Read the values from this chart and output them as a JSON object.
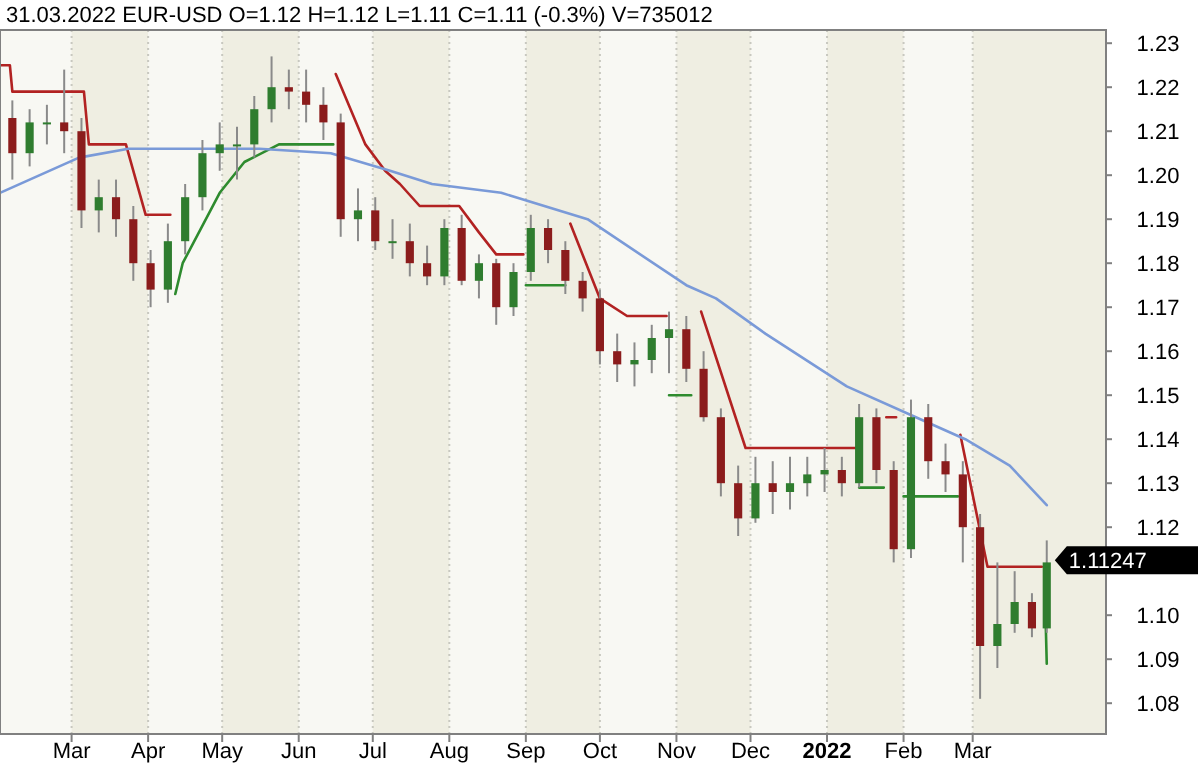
{
  "chart_data": {
    "type": "candlestick",
    "title": "31.03.2022 EUR-USD     O=1.12  H=1.12  L=1.11  C=1.11 (-0.3%)  V=735012",
    "x": [
      "2021-02-05",
      "2021-02-12",
      "2021-02-19",
      "2021-02-26",
      "2021-03-05",
      "2021-03-12",
      "2021-03-19",
      "2021-03-26",
      "2021-04-02",
      "2021-04-09",
      "2021-04-16",
      "2021-04-23",
      "2021-04-30",
      "2021-05-07",
      "2021-05-14",
      "2021-05-21",
      "2021-05-28",
      "2021-06-04",
      "2021-06-11",
      "2021-06-18",
      "2021-06-25",
      "2021-07-02",
      "2021-07-09",
      "2021-07-16",
      "2021-07-23",
      "2021-07-30",
      "2021-08-06",
      "2021-08-13",
      "2021-08-20",
      "2021-08-27",
      "2021-09-03",
      "2021-09-10",
      "2021-09-17",
      "2021-09-24",
      "2021-10-01",
      "2021-10-08",
      "2021-10-15",
      "2021-10-22",
      "2021-10-29",
      "2021-11-05",
      "2021-11-12",
      "2021-11-19",
      "2021-11-26",
      "2021-12-03",
      "2021-12-10",
      "2021-12-17",
      "2021-12-24",
      "2021-12-31",
      "2022-01-07",
      "2022-01-14",
      "2022-01-21",
      "2022-01-28",
      "2022-02-04",
      "2022-02-11",
      "2022-02-18",
      "2022-02-25",
      "2022-03-04",
      "2022-03-11",
      "2022-03-18",
      "2022-03-25",
      "2022-03-31"
    ],
    "ohlc": [
      [
        1.213,
        1.217,
        1.199,
        1.205
      ],
      [
        1.205,
        1.215,
        1.202,
        1.212
      ],
      [
        1.212,
        1.216,
        1.207,
        1.212
      ],
      [
        1.212,
        1.224,
        1.205,
        1.21
      ],
      [
        1.21,
        1.213,
        1.188,
        1.192
      ],
      [
        1.192,
        1.199,
        1.187,
        1.195
      ],
      [
        1.195,
        1.199,
        1.186,
        1.19
      ],
      [
        1.19,
        1.193,
        1.176,
        1.18
      ],
      [
        1.18,
        1.183,
        1.17,
        1.174
      ],
      [
        1.174,
        1.189,
        1.171,
        1.185
      ],
      [
        1.185,
        1.198,
        1.182,
        1.195
      ],
      [
        1.195,
        1.208,
        1.192,
        1.205
      ],
      [
        1.205,
        1.212,
        1.201,
        1.207
      ],
      [
        1.207,
        1.211,
        1.199,
        1.207
      ],
      [
        1.207,
        1.218,
        1.204,
        1.215
      ],
      [
        1.215,
        1.227,
        1.212,
        1.22
      ],
      [
        1.22,
        1.224,
        1.215,
        1.219
      ],
      [
        1.219,
        1.224,
        1.212,
        1.216
      ],
      [
        1.216,
        1.22,
        1.208,
        1.212
      ],
      [
        1.212,
        1.214,
        1.186,
        1.19
      ],
      [
        1.19,
        1.197,
        1.185,
        1.192
      ],
      [
        1.192,
        1.195,
        1.183,
        1.185
      ],
      [
        1.185,
        1.19,
        1.181,
        1.185
      ],
      [
        1.185,
        1.189,
        1.177,
        1.18
      ],
      [
        1.18,
        1.184,
        1.175,
        1.177
      ],
      [
        1.177,
        1.19,
        1.175,
        1.188
      ],
      [
        1.188,
        1.191,
        1.175,
        1.176
      ],
      [
        1.176,
        1.182,
        1.172,
        1.18
      ],
      [
        1.18,
        1.181,
        1.166,
        1.17
      ],
      [
        1.17,
        1.18,
        1.168,
        1.178
      ],
      [
        1.178,
        1.191,
        1.176,
        1.188
      ],
      [
        1.188,
        1.19,
        1.18,
        1.183
      ],
      [
        1.183,
        1.185,
        1.173,
        1.176
      ],
      [
        1.176,
        1.178,
        1.169,
        1.172
      ],
      [
        1.172,
        1.174,
        1.157,
        1.16
      ],
      [
        1.16,
        1.164,
        1.153,
        1.157
      ],
      [
        1.157,
        1.162,
        1.152,
        1.158
      ],
      [
        1.158,
        1.166,
        1.155,
        1.163
      ],
      [
        1.163,
        1.169,
        1.155,
        1.165
      ],
      [
        1.165,
        1.168,
        1.153,
        1.156
      ],
      [
        1.156,
        1.16,
        1.144,
        1.145
      ],
      [
        1.145,
        1.147,
        1.127,
        1.13
      ],
      [
        1.13,
        1.134,
        1.118,
        1.122
      ],
      [
        1.122,
        1.136,
        1.121,
        1.13
      ],
      [
        1.13,
        1.135,
        1.123,
        1.128
      ],
      [
        1.128,
        1.136,
        1.124,
        1.13
      ],
      [
        1.13,
        1.136,
        1.127,
        1.132
      ],
      [
        1.132,
        1.138,
        1.128,
        1.133
      ],
      [
        1.133,
        1.136,
        1.127,
        1.13
      ],
      [
        1.13,
        1.148,
        1.129,
        1.145
      ],
      [
        1.145,
        1.147,
        1.13,
        1.133
      ],
      [
        1.133,
        1.135,
        1.112,
        1.115
      ],
      [
        1.115,
        1.149,
        1.113,
        1.145
      ],
      [
        1.145,
        1.148,
        1.131,
        1.135
      ],
      [
        1.135,
        1.139,
        1.128,
        1.132
      ],
      [
        1.132,
        1.135,
        1.112,
        1.12
      ],
      [
        1.12,
        1.123,
        1.081,
        1.093
      ],
      [
        1.093,
        1.112,
        1.088,
        1.098
      ],
      [
        1.098,
        1.11,
        1.096,
        1.103
      ],
      [
        1.103,
        1.105,
        1.095,
        1.097
      ],
      [
        1.097,
        1.117,
        1.096,
        1.112
      ]
    ],
    "series": [
      {
        "type": "line",
        "color": "#b22222",
        "x": [
          "2021-01-31",
          "2021-02-04",
          "2021-02-05",
          "2021-03-06",
          "2021-03-08",
          "2021-03-23",
          "2021-03-31",
          "2021-04-10",
          "2021-04-11",
          "2021-06-16",
          "2021-06-28",
          "2021-07-06",
          "2021-07-12",
          "2021-07-20",
          "2021-08-05",
          "2021-08-13",
          "2021-08-20",
          "2021-08-31",
          "2021-09-01",
          "2021-09-19",
          "2021-10-01",
          "2021-10-12",
          "2021-10-28",
          "2021-10-29",
          "2021-11-11",
          "2021-11-29",
          "2022-01-13",
          "2022-01-14",
          "2022-01-25",
          "2022-01-29",
          "2022-01-30",
          "2022-02-24",
          "2022-03-07",
          "2022-03-29"
        ],
        "values": [
          1.225,
          1.225,
          1.219,
          1.219,
          1.207,
          1.207,
          1.191,
          1.191,
          null,
          1.223,
          1.207,
          1.201,
          1.198,
          1.193,
          1.193,
          1.187,
          1.182,
          1.182,
          null,
          1.189,
          1.172,
          1.168,
          1.168,
          null,
          1.169,
          1.138,
          1.138,
          null,
          1.145,
          1.145,
          null,
          1.141,
          1.111,
          1.111
        ]
      },
      {
        "type": "line",
        "color": "#2e8b2e",
        "x": [
          "2021-04-12",
          "2021-04-15",
          "2021-04-30",
          "2021-05-10",
          "2021-05-24",
          "2021-06-15",
          "2021-06-16",
          "2021-09-01",
          "2021-09-17",
          "2021-09-18",
          "2021-10-29",
          "2021-11-07",
          "2021-11-08",
          "2022-01-14",
          "2022-01-24",
          "2022-01-25",
          "2022-02-01",
          "2022-02-23",
          "2022-02-24",
          "2022-03-30",
          "2022-03-31"
        ],
        "values": [
          1.173,
          1.18,
          1.196,
          1.203,
          1.207,
          1.207,
          null,
          1.175,
          1.175,
          null,
          1.15,
          1.15,
          null,
          1.129,
          1.129,
          null,
          1.127,
          1.127,
          null,
          1.111,
          1.089
        ]
      },
      {
        "type": "line",
        "color": "#7a9ad8",
        "x": [
          "2021-01-31",
          "2021-03-04",
          "2021-03-24",
          "2021-05-16",
          "2021-06-14",
          "2021-07-08",
          "2021-07-25",
          "2021-08-22",
          "2021-09-26",
          "2021-11-05",
          "2021-11-17",
          "2021-12-07",
          "2022-01-09",
          "2022-02-06",
          "2022-02-26",
          "2022-03-16",
          "2022-03-31"
        ],
        "values": [
          1.196,
          1.204,
          1.206,
          1.206,
          1.205,
          1.201,
          1.198,
          1.196,
          1.19,
          1.175,
          1.172,
          1.164,
          1.152,
          1.145,
          1.14,
          1.134,
          1.125
        ]
      }
    ],
    "xlim": [
      "2021-01-31",
      "2022-04-24"
    ],
    "xticks": [
      {
        "value": "2021-03-01",
        "label": "Mar"
      },
      {
        "value": "2021-04-01",
        "label": "Apr"
      },
      {
        "value": "2021-05-01",
        "label": "May"
      },
      {
        "value": "2021-06-01",
        "label": "Jun"
      },
      {
        "value": "2021-07-01",
        "label": "Jul"
      },
      {
        "value": "2021-08-01",
        "label": "Aug"
      },
      {
        "value": "2021-09-01",
        "label": "Sep"
      },
      {
        "value": "2021-10-01",
        "label": "Oct"
      },
      {
        "value": "2021-11-01",
        "label": "Nov"
      },
      {
        "value": "2021-12-01",
        "label": "Dec"
      },
      {
        "value": "2022-01-01",
        "label": "2022"
      },
      {
        "value": "2022-02-01",
        "label": "Feb"
      },
      {
        "value": "2022-03-01",
        "label": "Mar"
      }
    ],
    "ylim": [
      1.073,
      1.233
    ],
    "yticks": [
      {
        "value": 1.08,
        "label": "1.08"
      },
      {
        "value": 1.09,
        "label": "1.09"
      },
      {
        "value": 1.1,
        "label": "1.10"
      },
      {
        "value": 1.11,
        "label": null
      },
      {
        "value": 1.12,
        "label": "1.12"
      },
      {
        "value": 1.13,
        "label": "1.13"
      },
      {
        "value": 1.14,
        "label": "1.14"
      },
      {
        "value": 1.15,
        "label": "1.15"
      },
      {
        "value": 1.16,
        "label": "1.16"
      },
      {
        "value": 1.17,
        "label": "1.17"
      },
      {
        "value": 1.18,
        "label": "1.18"
      },
      {
        "value": 1.19,
        "label": "1.19"
      },
      {
        "value": 1.2,
        "label": "1.20"
      },
      {
        "value": 1.21,
        "label": "1.21"
      },
      {
        "value": 1.22,
        "label": "1.22"
      },
      {
        "value": 1.23,
        "label": "1.23"
      }
    ],
    "grid": "x",
    "bands": [
      {
        "axis": "x",
        "from": "2021-03-01",
        "to": "2021-04-01",
        "color": "#efeee2"
      },
      {
        "axis": "x",
        "from": "2021-05-01",
        "to": "2021-06-01",
        "color": "#efeee2"
      },
      {
        "axis": "x",
        "from": "2021-07-01",
        "to": "2021-08-01",
        "color": "#efeee2"
      },
      {
        "axis": "x",
        "from": "2021-09-01",
        "to": "2021-10-01",
        "color": "#efeee2"
      },
      {
        "axis": "x",
        "from": "2021-11-01",
        "to": "2021-12-01",
        "color": "#efeee2"
      },
      {
        "axis": "x",
        "from": "2022-01-01",
        "to": "2022-02-01",
        "color": "#efeee2"
      },
      {
        "axis": "x",
        "from": "2022-03-01",
        "to": "2022-04-24",
        "color": "#efeee2"
      }
    ],
    "annotations": [
      {
        "text": "1.11247",
        "x": "2022-03-31",
        "y": 1.11247
      }
    ]
  }
}
